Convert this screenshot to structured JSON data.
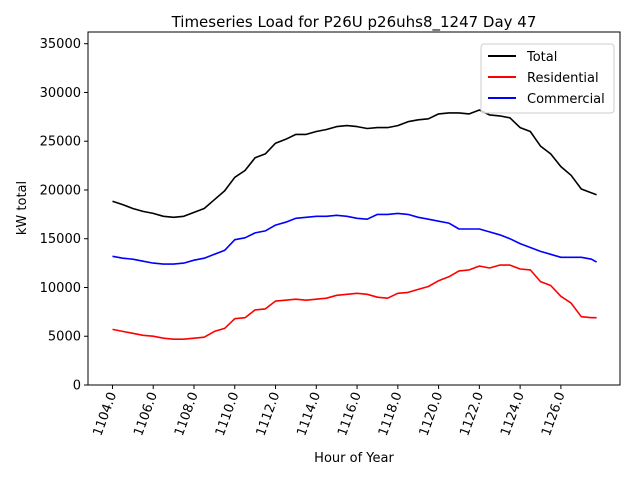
{
  "chart_data": {
    "type": "line",
    "title": "Timeseries Load for P26U p26uhs8_1247  Day 47",
    "xlabel": "Hour of Year",
    "ylabel": "kW total",
    "xlim": [
      1102.8,
      1128.9
    ],
    "ylim": [
      0,
      36200
    ],
    "xticks": [
      1104,
      1106,
      1108,
      1110,
      1112,
      1114,
      1116,
      1118,
      1120,
      1122,
      1124,
      1126
    ],
    "xtick_labels": [
      "1104.0",
      "1106.0",
      "1108.0",
      "1110.0",
      "1112.0",
      "1114.0",
      "1116.0",
      "1118.0",
      "1120.0",
      "1122.0",
      "1124.0",
      "1126.0"
    ],
    "yticks": [
      0,
      5000,
      10000,
      15000,
      20000,
      25000,
      30000,
      35000
    ],
    "ytick_labels": [
      "0",
      "5000",
      "10000",
      "15000",
      "20000",
      "25000",
      "30000",
      "35000"
    ],
    "grid": false,
    "legend_position": "top-right",
    "x": [
      1104,
      1104.5,
      1105,
      1105.5,
      1106,
      1106.5,
      1107,
      1107.5,
      1108,
      1108.5,
      1109,
      1109.5,
      1110,
      1110.5,
      1111,
      1111.5,
      1112,
      1112.5,
      1113,
      1113.5,
      1114,
      1114.5,
      1115,
      1115.5,
      1116,
      1116.5,
      1117,
      1117.5,
      1118,
      1118.5,
      1119,
      1119.5,
      1120,
      1120.5,
      1121,
      1121.5,
      1122,
      1122.5,
      1123,
      1123.5,
      1124,
      1124.5,
      1125,
      1125.5,
      1126,
      1126.5,
      1127,
      1127.5,
      1127.75
    ],
    "series": [
      {
        "name": "Total",
        "color": "#000000",
        "values": [
          18850,
          18500,
          18100,
          17800,
          17600,
          17300,
          17200,
          17300,
          17700,
          18100,
          19000,
          19900,
          21300,
          22000,
          23300,
          23700,
          24800,
          25200,
          25700,
          25700,
          26000,
          26200,
          26500,
          26600,
          26500,
          26300,
          26400,
          26400,
          26600,
          27000,
          27200,
          27300,
          27800,
          27900,
          27900,
          27800,
          28200,
          27700,
          27600,
          27400,
          26400,
          26000,
          24500,
          23700,
          22400,
          21500,
          20100,
          19700,
          19500
        ]
      },
      {
        "name": "Residential",
        "color": "#ff0000",
        "values": [
          5700,
          5500,
          5300,
          5100,
          5000,
          4800,
          4700,
          4700,
          4800,
          4900,
          5500,
          5800,
          6800,
          6900,
          7700,
          7800,
          8600,
          8700,
          8800,
          8700,
          8800,
          8900,
          9200,
          9300,
          9400,
          9300,
          9000,
          8900,
          9400,
          9500,
          9800,
          10100,
          10700,
          11100,
          11700,
          11800,
          12200,
          12000,
          12300,
          12300,
          11900,
          11800,
          10600,
          10200,
          9100,
          8400,
          7000,
          6900,
          6900
        ]
      },
      {
        "name": "Commercial",
        "color": "#0000ff",
        "values": [
          13200,
          13000,
          12900,
          12700,
          12500,
          12400,
          12400,
          12500,
          12800,
          13000,
          13400,
          13800,
          14900,
          15100,
          15600,
          15800,
          16400,
          16700,
          17100,
          17200,
          17300,
          17300,
          17400,
          17300,
          17100,
          17000,
          17500,
          17500,
          17600,
          17500,
          17200,
          17000,
          16800,
          16600,
          16000,
          16000,
          16000,
          15700,
          15400,
          15000,
          14500,
          14100,
          13700,
          13400,
          13100,
          13100,
          13100,
          12900,
          12600
        ]
      }
    ]
  }
}
